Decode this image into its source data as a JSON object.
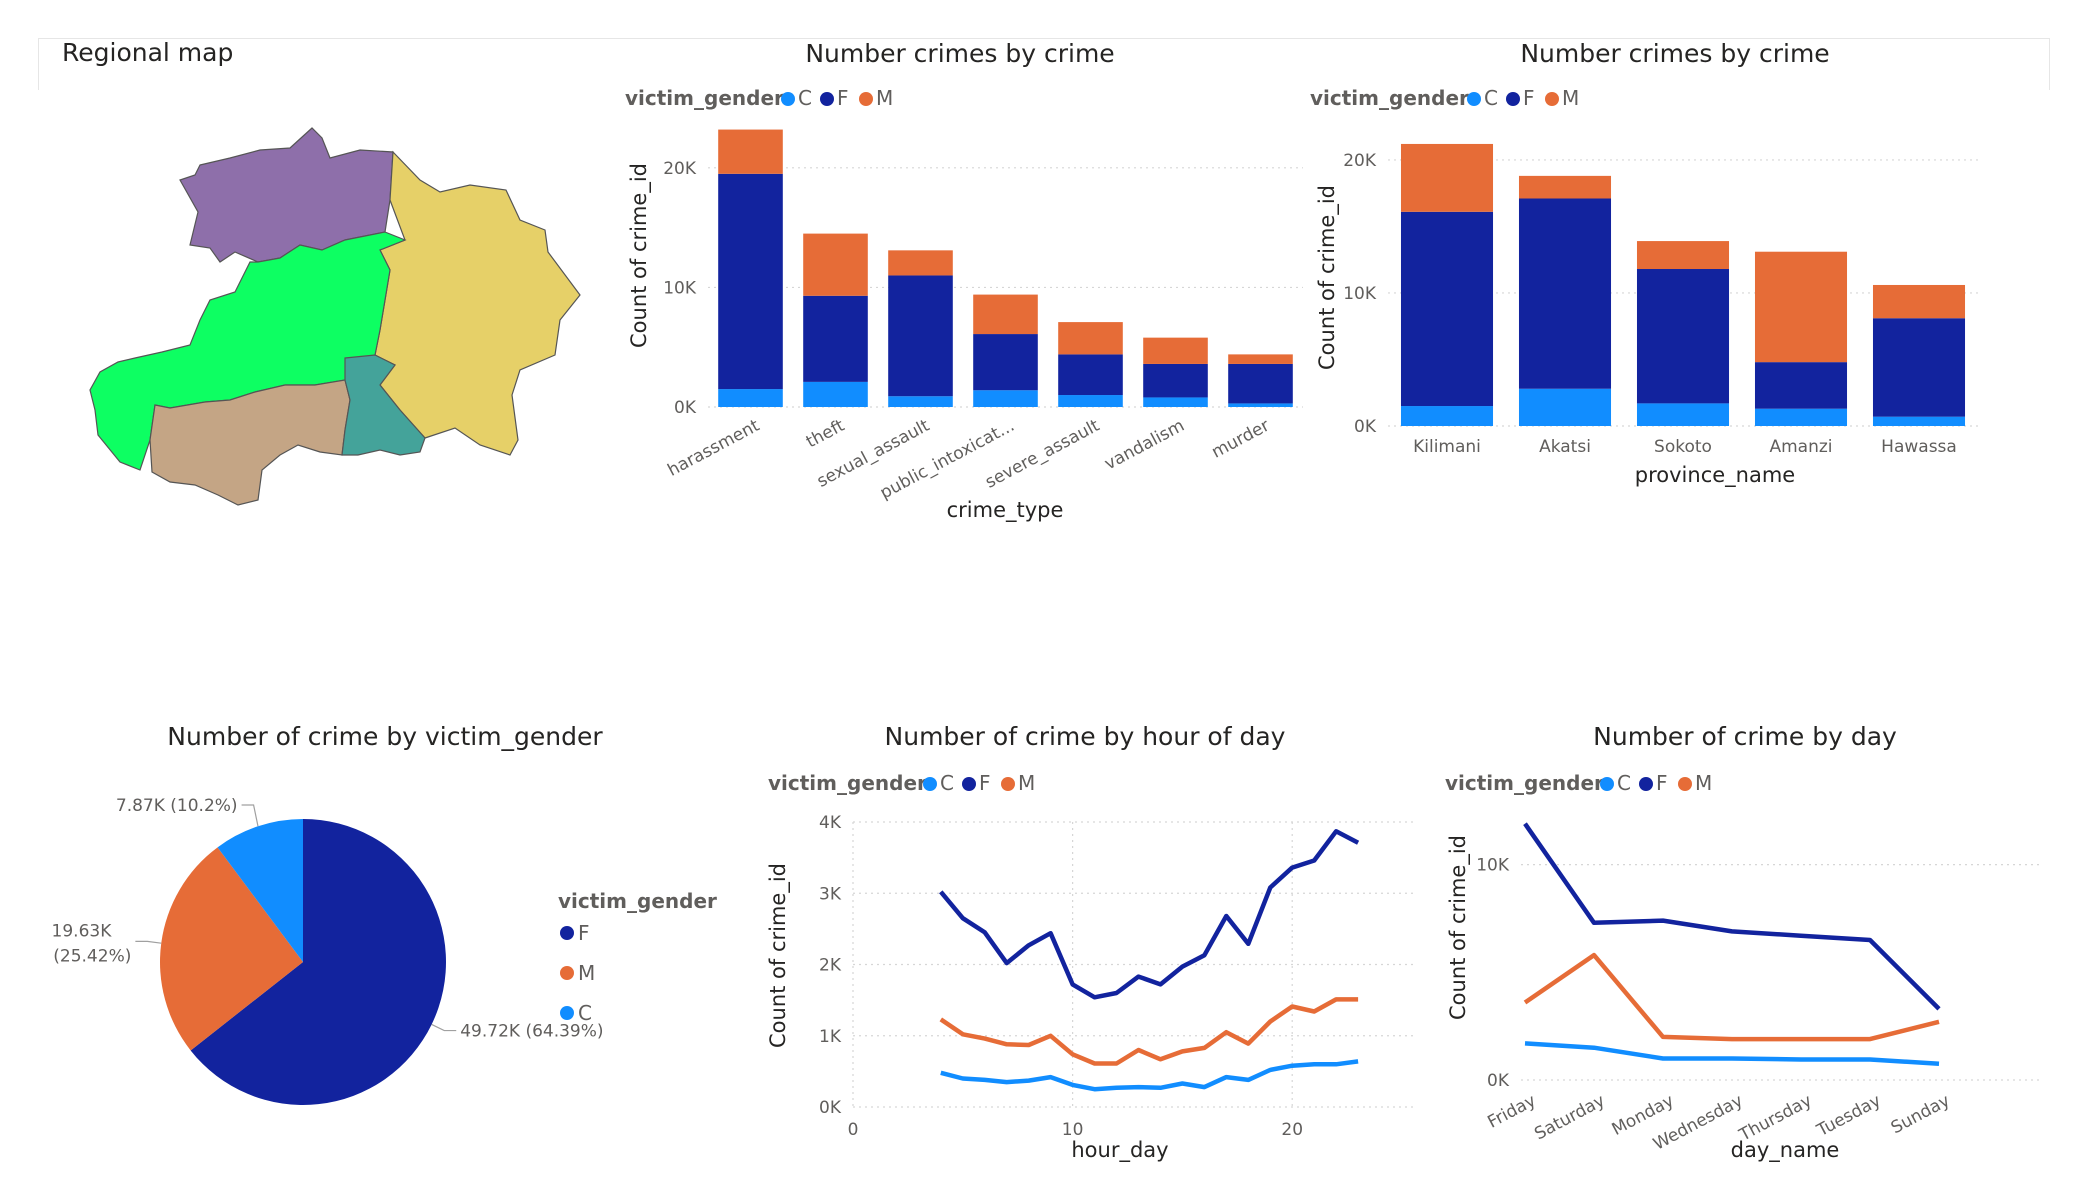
{
  "map": {
    "title": "Regional map",
    "regions": [
      {
        "name": "north-west",
        "color": "#8e6faa"
      },
      {
        "name": "east",
        "color": "#e6d068"
      },
      {
        "name": "central",
        "color": "#0dff62"
      },
      {
        "name": "south-west",
        "color": "#c4a585"
      },
      {
        "name": "south-central",
        "color": "#44a39a"
      }
    ]
  },
  "legend": {
    "title": "victim_gender",
    "items": [
      {
        "label": "C",
        "color": "#118dff"
      },
      {
        "label": "F",
        "color": "#12239e"
      },
      {
        "label": "M",
        "color": "#e66c37"
      }
    ]
  },
  "chart_data": [
    {
      "id": "by_crime",
      "type": "bar",
      "stacked": true,
      "title": "Number crimes by crime",
      "xlabel": "crime_type",
      "ylabel": "Count of crime_id",
      "categories": [
        "harassment",
        "theft",
        "sexual_assault",
        "public_intoxicat...",
        "severe_assault",
        "vandalism",
        "murder"
      ],
      "series": [
        {
          "name": "C",
          "color": "#118dff",
          "values": [
            1500,
            2100,
            900,
            1400,
            1000,
            800,
            300
          ]
        },
        {
          "name": "F",
          "color": "#12239e",
          "values": [
            18000,
            7200,
            10100,
            4700,
            3400,
            2800,
            3300
          ]
        },
        {
          "name": "M",
          "color": "#e66c37",
          "values": [
            3700,
            5200,
            2100,
            3300,
            2700,
            2200,
            800
          ]
        }
      ],
      "ylim": [
        0,
        24000
      ],
      "yticks": [
        {
          "v": 0,
          "label": "0K"
        },
        {
          "v": 10000,
          "label": "10K"
        },
        {
          "v": 20000,
          "label": "20K"
        }
      ],
      "legend_position": "top-left"
    },
    {
      "id": "by_province",
      "type": "bar",
      "stacked": true,
      "title": "Number crimes by crime",
      "xlabel": "province_name",
      "ylabel": "Count of crime_id",
      "categories": [
        "Kilimani",
        "Akatsi",
        "Sokoto",
        "Amanzi",
        "Hawassa"
      ],
      "series": [
        {
          "name": "C",
          "color": "#118dff",
          "values": [
            1500,
            2800,
            1700,
            1300,
            700
          ]
        },
        {
          "name": "F",
          "color": "#12239e",
          "values": [
            14600,
            14300,
            10100,
            3500,
            7400
          ]
        },
        {
          "name": "M",
          "color": "#e66c37",
          "values": [
            5100,
            1700,
            2100,
            8300,
            2500
          ]
        }
      ],
      "ylim": [
        0,
        23000
      ],
      "yticks": [
        {
          "v": 0,
          "label": "0K"
        },
        {
          "v": 10000,
          "label": "10K"
        },
        {
          "v": 20000,
          "label": "20K"
        }
      ],
      "legend_position": "top-left"
    },
    {
      "id": "by_gender",
      "type": "pie",
      "title": "Number of crime by victim_gender",
      "legend_title": "victim_gender",
      "slices": [
        {
          "name": "F",
          "value": 49720,
          "label": "49.72K (64.39%)",
          "color": "#12239e"
        },
        {
          "name": "M",
          "value": 19630,
          "label_line1": "19.63K",
          "label_line2": "(25.42%)",
          "color": "#e66c37"
        },
        {
          "name": "C",
          "value": 7870,
          "label": "7.87K (10.2%)",
          "color": "#118dff"
        }
      ],
      "legend_position": "right"
    },
    {
      "id": "by_hour",
      "type": "line",
      "title": "Number of crime by hour of day",
      "xlabel": "hour_day",
      "ylabel": "Count of crime_id",
      "x": [
        4,
        5,
        6,
        7,
        8,
        9,
        10,
        11,
        12,
        13,
        14,
        15,
        16,
        17,
        18,
        19,
        20,
        21,
        22,
        23
      ],
      "series": [
        {
          "name": "C",
          "color": "#118dff",
          "values": [
            480,
            400,
            380,
            350,
            370,
            420,
            310,
            250,
            270,
            280,
            270,
            330,
            280,
            420,
            380,
            520,
            580,
            600,
            600,
            640
          ]
        },
        {
          "name": "F",
          "color": "#12239e",
          "values": [
            3020,
            2650,
            2450,
            2020,
            2270,
            2440,
            1720,
            1540,
            1600,
            1830,
            1720,
            1970,
            2130,
            2680,
            2290,
            3080,
            3360,
            3460,
            3870,
            3710
          ]
        },
        {
          "name": "M",
          "color": "#e66c37",
          "values": [
            1230,
            1020,
            960,
            880,
            870,
            1000,
            740,
            610,
            610,
            800,
            670,
            780,
            830,
            1050,
            890,
            1200,
            1410,
            1340,
            1510,
            1510
          ]
        }
      ],
      "xlim": [
        0,
        25.5
      ],
      "ylim": [
        0,
        4000
      ],
      "xticks": [
        0,
        10,
        20
      ],
      "yticks": [
        {
          "v": 0,
          "label": "0K"
        },
        {
          "v": 1000,
          "label": "1K"
        },
        {
          "v": 2000,
          "label": "2K"
        },
        {
          "v": 3000,
          "label": "3K"
        },
        {
          "v": 4000,
          "label": "4K"
        }
      ],
      "legend_position": "top-left"
    },
    {
      "id": "by_day",
      "type": "line",
      "title": "Number of crime by day",
      "xlabel": "day_name",
      "ylabel": "Count of crime_id",
      "categories": [
        "Friday",
        "Saturday",
        "Monday",
        "Wednesday",
        "Thursday",
        "Tuesday",
        "Sunday"
      ],
      "series": [
        {
          "name": "C",
          "color": "#118dff",
          "values": [
            1700,
            1500,
            1000,
            1000,
            950,
            950,
            750
          ]
        },
        {
          "name": "F",
          "color": "#12239e",
          "values": [
            11900,
            7300,
            7400,
            6900,
            6700,
            6500,
            3300
          ]
        },
        {
          "name": "M",
          "color": "#e66c37",
          "values": [
            3600,
            5800,
            2000,
            1900,
            1900,
            1900,
            2700
          ]
        }
      ],
      "ylim": [
        0,
        13000
      ],
      "yticks": [
        {
          "v": 0,
          "label": "0K"
        },
        {
          "v": 10000,
          "label": "10K"
        }
      ],
      "legend_position": "top-left"
    }
  ]
}
